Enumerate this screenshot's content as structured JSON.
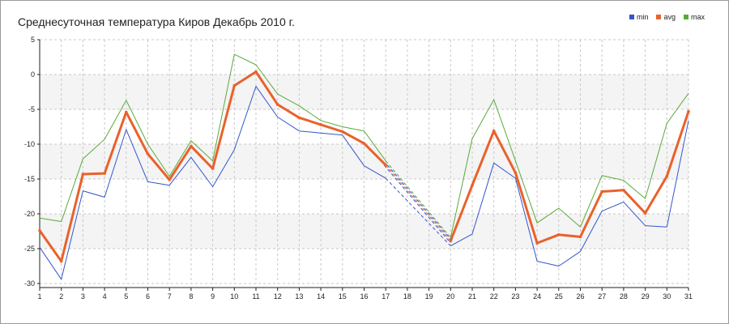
{
  "chart_data": {
    "type": "line",
    "title": "Среднесуточная температура Киров  Декабрь 2010 г.",
    "x": [
      1,
      2,
      3,
      4,
      5,
      6,
      7,
      8,
      9,
      10,
      11,
      12,
      13,
      14,
      15,
      16,
      17,
      18,
      19,
      20,
      21,
      22,
      23,
      24,
      25,
      26,
      27,
      28,
      29,
      30,
      31
    ],
    "ylim": [
      -30,
      5
    ],
    "yticks": [
      5,
      0,
      -5,
      -10,
      -15,
      -20,
      -25,
      -30
    ],
    "grid": true,
    "legend_position": "top-right",
    "series": [
      {
        "name": "min",
        "color": "#3355cc",
        "values": [
          -24.8,
          -29.4,
          -16.7,
          -17.6,
          -7.9,
          -15.4,
          -15.9,
          -11.9,
          -16.1,
          -10.8,
          -1.7,
          -6.1,
          -8.1,
          -8.4,
          -8.7,
          -13.1,
          -14.9,
          null,
          null,
          -24.6,
          -22.9,
          -12.7,
          -14.9,
          -26.8,
          -27.5,
          -25.4,
          -19.6,
          -18.3,
          -21.7,
          -21.9,
          -6.6
        ]
      },
      {
        "name": "avg",
        "color": "#e8622c",
        "values": [
          -22.4,
          -26.8,
          -14.3,
          -14.2,
          -5.4,
          -11.4,
          -15.1,
          -10.3,
          -13.5,
          -1.6,
          0.4,
          -4.3,
          -6.2,
          -7.2,
          -8.2,
          -9.9,
          -13.0,
          null,
          null,
          -23.9,
          -15.9,
          -8.1,
          -14.1,
          -24.2,
          -23.0,
          -23.3,
          -16.8,
          -16.6,
          -19.9,
          -14.6,
          -5.3
        ]
      },
      {
        "name": "max",
        "color": "#5aaa3a",
        "values": [
          -20.6,
          -21.1,
          -12.1,
          -9.3,
          -3.7,
          -10.0,
          -14.6,
          -9.5,
          -12.4,
          2.9,
          1.4,
          -2.8,
          -4.5,
          -6.6,
          -7.5,
          -8.1,
          -12.4,
          null,
          null,
          -23.4,
          -9.2,
          -3.6,
          -12.4,
          -21.3,
          -19.2,
          -21.9,
          -14.5,
          -15.2,
          -17.8,
          -7.0,
          -2.7
        ]
      }
    ]
  }
}
